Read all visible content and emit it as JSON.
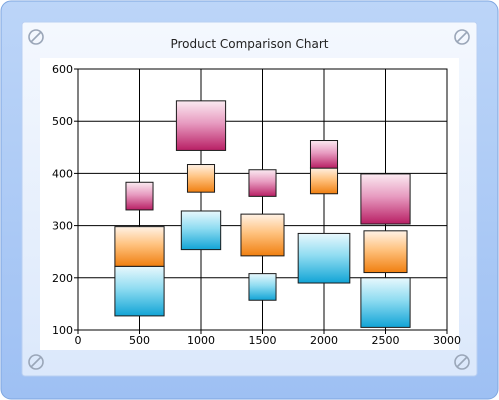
{
  "title": "Product Comparison Chart",
  "colors": {
    "pink": [
      "#fbeaf1",
      "#e79bc0",
      "#b81f64"
    ],
    "orange": [
      "#fff2e6",
      "#ffc27f",
      "#f07f10"
    ],
    "blue": [
      "#e8f8fd",
      "#8fdcf1",
      "#12a4d6"
    ],
    "frame_outer": "#a9c7f5",
    "frame_inner": "#e9f1fd"
  },
  "chart_data": {
    "type": "box",
    "title": "Product Comparison Chart",
    "xlim": [
      0,
      3000
    ],
    "ylim": [
      100,
      600
    ],
    "x_ticks": [
      "0",
      "500",
      "1000",
      "1500",
      "2000",
      "2500",
      "3000"
    ],
    "y_ticks": [
      "100",
      "200",
      "300",
      "400",
      "500",
      "600"
    ],
    "grid": true,
    "series": [
      {
        "color": "blue",
        "boxes": [
          {
            "x": 500,
            "width": 400,
            "low": 127,
            "high": 222
          },
          {
            "x": 1000,
            "width": 320,
            "low": 254,
            "high": 328
          },
          {
            "x": 1500,
            "width": 220,
            "low": 157,
            "high": 208
          },
          {
            "x": 2000,
            "width": 420,
            "low": 190,
            "high": 285
          },
          {
            "x": 2500,
            "width": 400,
            "low": 105,
            "high": 200
          }
        ]
      },
      {
        "color": "orange",
        "boxes": [
          {
            "x": 500,
            "width": 400,
            "low": 222,
            "high": 298
          },
          {
            "x": 1000,
            "width": 220,
            "low": 364,
            "high": 417
          },
          {
            "x": 1500,
            "width": 350,
            "low": 242,
            "high": 322
          },
          {
            "x": 2000,
            "width": 220,
            "low": 361,
            "high": 411
          },
          {
            "x": 2500,
            "width": 350,
            "low": 210,
            "high": 290
          }
        ]
      },
      {
        "color": "pink",
        "boxes": [
          {
            "x": 500,
            "width": 220,
            "low": 330,
            "high": 383
          },
          {
            "x": 1000,
            "width": 400,
            "low": 444,
            "high": 539
          },
          {
            "x": 1500,
            "width": 220,
            "low": 356,
            "high": 407
          },
          {
            "x": 2000,
            "width": 220,
            "low": 410,
            "high": 463
          },
          {
            "x": 2500,
            "width": 400,
            "low": 303,
            "high": 399
          }
        ]
      }
    ]
  }
}
